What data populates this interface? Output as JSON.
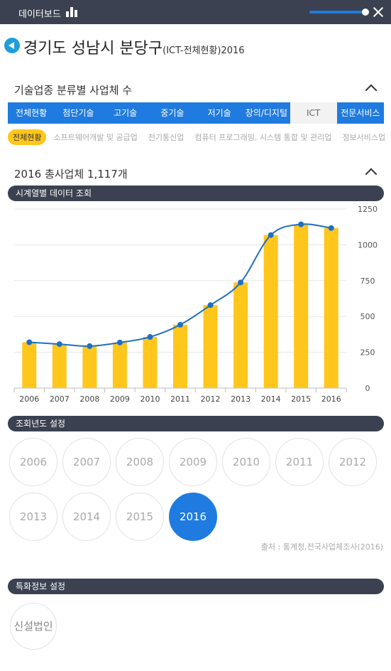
{
  "header": {
    "title": "데이터보드"
  },
  "page": {
    "title": "경기도 성남시 분당구",
    "subtitle": "(ICT-전체현황)2016"
  },
  "section_industry": {
    "title": "기술업종 분류별 사업체 수",
    "tabs": [
      "전체현황",
      "첨단기술",
      "고기술",
      "중기술",
      "저기술",
      "창의/디지털",
      "ICT",
      "전문서비스"
    ],
    "active_tab": "ICT",
    "sub_tabs": [
      "전체현황",
      "소프트웨어개발 및 공급업",
      "전기통신업",
      "컴퓨터 프로그래밍, 시스템 통합 및 관리업",
      "정보서비스업"
    ],
    "active_sub_tab": "전체현황"
  },
  "section_total": {
    "title": "2016 총사업체 1,117개",
    "series_label": "시계열별 데이터 조회"
  },
  "chart_data": {
    "type": "bar",
    "categories": [
      "2006",
      "2007",
      "2008",
      "2009",
      "2010",
      "2011",
      "2012",
      "2013",
      "2014",
      "2015",
      "2016"
    ],
    "values": [
      320,
      307,
      293,
      318,
      357,
      442,
      579,
      737,
      1068,
      1143,
      1117
    ],
    "line_overlay": true,
    "yticks": [
      0,
      250,
      500,
      750,
      1000,
      1250
    ],
    "ylim": [
      0,
      1250
    ],
    "y_axis_position": "right",
    "bar_color": "#ffc61c",
    "line_color": "#1f6fc4",
    "grid": true
  },
  "year_selector": {
    "title": "조회년도 설정",
    "years": [
      "2006",
      "2007",
      "2008",
      "2009",
      "2010",
      "2011",
      "2012",
      "2013",
      "2014",
      "2015",
      "2016"
    ],
    "selected": "2016"
  },
  "source": "출처 : 통계청,전국사업체조사(2016)",
  "special_info": {
    "title": "특화정보 설정",
    "button": "신설법인"
  },
  "colors": {
    "primary": "#1f7be0",
    "dark": "#3b4150",
    "accent": "#ffc61c",
    "back_button": "#1e9fd8"
  }
}
